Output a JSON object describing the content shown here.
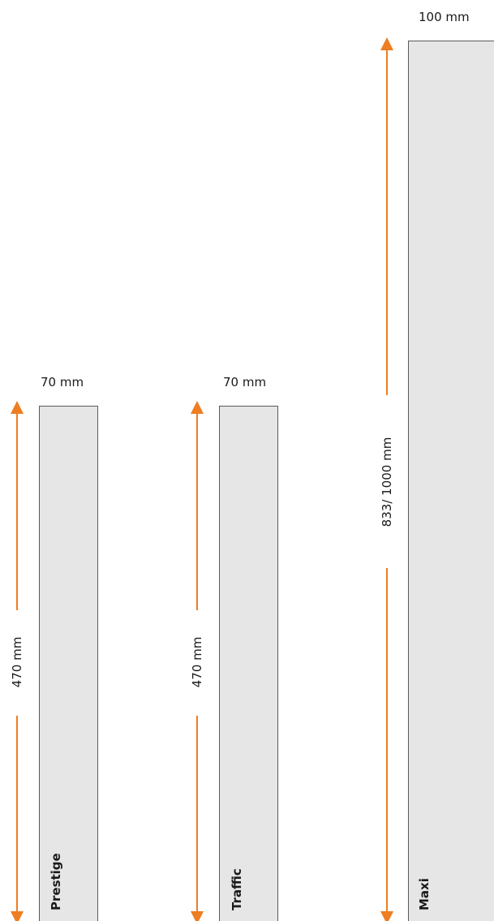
{
  "posts": [
    {
      "name": "Prestige",
      "width": "70 mm",
      "height": "470 mm"
    },
    {
      "name": "Traffic",
      "width": "70 mm",
      "height": "470 mm"
    },
    {
      "name": "Maxi",
      "width": "100 mm",
      "height": "833/ 1000 mm"
    }
  ],
  "colors": {
    "post_fill": "#e6e6e7",
    "post_border": "#5a5a5a",
    "arrow": "#ef7d22"
  }
}
